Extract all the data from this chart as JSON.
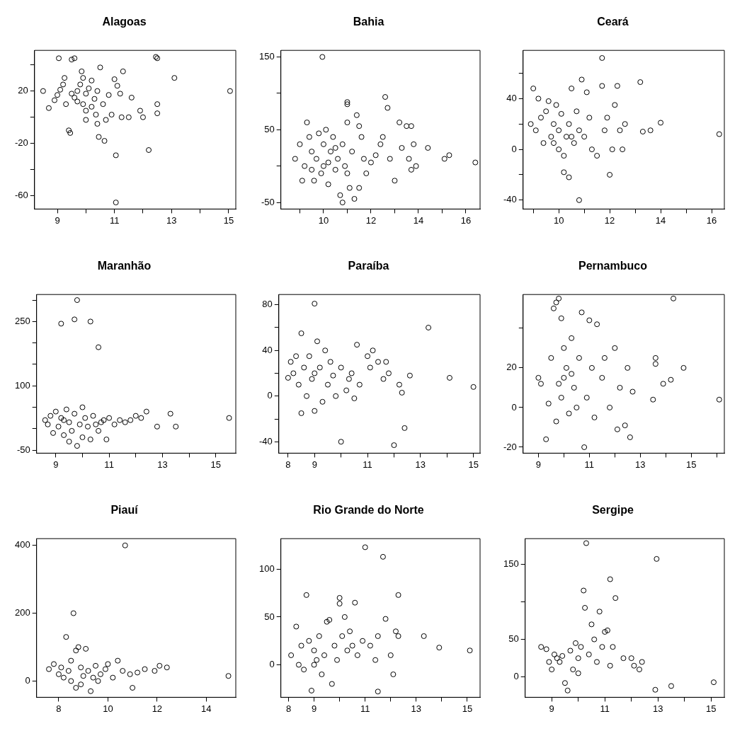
{
  "chart_data": [
    {
      "type": "scatter",
      "title": "Alagoas",
      "marker": "circle",
      "xlim": [
        8.2,
        15.25
      ],
      "xticks": [
        9,
        {
          "value": 10,
          "label": null
        },
        11,
        {
          "value": 12,
          "label": null
        },
        13,
        {
          "value": 14,
          "label": null
        },
        15
      ],
      "ylim": [
        -70,
        51
      ],
      "yticks": [
        -60,
        {
          "value": -40,
          "label": null
        },
        -20,
        {
          "value": 0,
          "label": null
        },
        20,
        {
          "value": 40,
          "label": null
        }
      ],
      "series": [
        {
          "color": "#000000",
          "x": [
            8.5,
            8.7,
            8.9,
            9.0,
            9.05,
            9.1,
            9.2,
            9.25,
            9.3,
            9.4,
            9.45,
            9.5,
            9.5,
            9.6,
            9.6,
            9.7,
            9.7,
            9.8,
            9.85,
            9.9,
            10,
            10,
            10.1,
            10.2,
            10.3,
            10.35,
            10.4,
            10.45,
            10.5,
            10.6,
            10.65,
            10.7,
            10.8,
            10.9,
            11.0,
            11.05,
            11.05,
            11.1,
            11.2,
            11.25,
            11.3,
            11.5,
            11.6,
            11.9,
            12.0,
            12.2,
            12.45,
            12.5,
            12.5,
            12.5,
            13.1,
            15.05,
            10.2,
            9.9,
            10.4,
            10.0
          ],
          "values": [
            20,
            7,
            13,
            17,
            45,
            21,
            25,
            30,
            10,
            -10,
            -12,
            18,
            44,
            45,
            15,
            12,
            20,
            25,
            35,
            30,
            18,
            5,
            22,
            28,
            14,
            2,
            -5,
            -15,
            38,
            10,
            -18,
            -2,
            17,
            2,
            29,
            -29,
            -65,
            24,
            18,
            0,
            35,
            0,
            15,
            5,
            0,
            -25,
            46,
            45,
            10,
            3,
            30,
            20,
            8,
            10,
            20,
            -2
          ]
        }
      ]
    },
    {
      "type": "scatter",
      "title": "Bahia",
      "marker": "circle",
      "xlim": [
        8.2,
        16.6
      ],
      "xticks": [
        {
          "value": 9,
          "label": null
        },
        10,
        {
          "value": 11,
          "label": null
        },
        12,
        {
          "value": 13,
          "label": null
        },
        14,
        {
          "value": 15,
          "label": null
        },
        16
      ],
      "ylim": [
        -59,
        159
      ],
      "yticks": [
        -50,
        {
          "value": 0,
          "label": null
        },
        50,
        {
          "value": 100,
          "label": null
        },
        150
      ],
      "series": [
        {
          "color": "#000000",
          "x": [
            8.8,
            9,
            9.1,
            9.2,
            9.3,
            9.4,
            9.5,
            9.6,
            9.7,
            9.8,
            9.9,
            9.95,
            10,
            10,
            10.1,
            10.2,
            10.3,
            10.4,
            10.5,
            10.6,
            10.7,
            10.8,
            10.8,
            10.9,
            11,
            11,
            11,
            11.1,
            11.2,
            11.3,
            11.4,
            11.5,
            11.5,
            11.6,
            11.7,
            11.8,
            12,
            12.2,
            12.4,
            12.5,
            12.6,
            12.7,
            12.8,
            13,
            13.2,
            13.3,
            13.5,
            13.6,
            13.7,
            13.7,
            13.8,
            13.9,
            14.4,
            15.1,
            15.3,
            16.4,
            9.5,
            10.5,
            11,
            10.2
          ],
          "values": [
            10,
            30,
            -20,
            0,
            60,
            40,
            20,
            -20,
            10,
            45,
            -10,
            150,
            0,
            30,
            50,
            -25,
            20,
            40,
            -5,
            10,
            -40,
            -50,
            30,
            0,
            85,
            88,
            60,
            -30,
            20,
            -45,
            70,
            -30,
            55,
            40,
            10,
            -10,
            5,
            15,
            30,
            40,
            95,
            80,
            10,
            -20,
            60,
            25,
            55,
            10,
            -5,
            55,
            30,
            0,
            25,
            10,
            15,
            5,
            -5,
            25,
            -10,
            5
          ]
        }
      ]
    },
    {
      "type": "scatter",
      "title": "Ceará",
      "marker": "circle",
      "xlim": [
        8.6,
        16.5
      ],
      "xticks": [
        {
          "value": 9,
          "label": null
        },
        10,
        {
          "value": 11,
          "label": null
        },
        12,
        {
          "value": 13,
          "label": null
        },
        14,
        {
          "value": 15,
          "label": null
        },
        16
      ],
      "ylim": [
        -47,
        78
      ],
      "yticks": [
        -40,
        {
          "value": -20,
          "label": null
        },
        0,
        {
          "value": 20,
          "label": null
        },
        40,
        {
          "value": 60,
          "label": null
        }
      ],
      "series": [
        {
          "color": "#000000",
          "x": [
            8.9,
            9.0,
            9.1,
            9.2,
            9.3,
            9.4,
            9.5,
            9.6,
            9.7,
            9.8,
            9.9,
            10,
            10,
            10.1,
            10.2,
            10.2,
            10.3,
            10.4,
            10.4,
            10.5,
            10.6,
            10.7,
            10.8,
            10.8,
            10.9,
            11,
            11.1,
            11.2,
            11.3,
            11.5,
            11.7,
            11.7,
            11.8,
            11.9,
            12,
            12.1,
            12.2,
            12.3,
            12.4,
            12.5,
            12.6,
            13.2,
            13.3,
            13.6,
            14,
            16.3,
            10.5,
            9.8
          ],
          "values": [
            20,
            48,
            15,
            40,
            25,
            5,
            30,
            38,
            10,
            20,
            35,
            0,
            15,
            28,
            -5,
            -18,
            10,
            20,
            -22,
            48,
            5,
            30,
            -40,
            15,
            55,
            10,
            45,
            25,
            0,
            -5,
            72,
            50,
            15,
            25,
            -20,
            0,
            35,
            50,
            15,
            0,
            20,
            53,
            14,
            15,
            21,
            12,
            10,
            5
          ]
        }
      ]
    },
    {
      "type": "scatter",
      "title": "Maranhão",
      "marker": "circle",
      "xlim": [
        8.28,
        15.75
      ],
      "xticks": [
        9,
        {
          "value": 10,
          "label": null
        },
        11,
        {
          "value": 12,
          "label": null
        },
        13,
        {
          "value": 14,
          "label": null
        },
        15
      ],
      "ylim": [
        -57,
        313
      ],
      "yticks": [
        -50,
        {
          "value": 0,
          "label": null
        },
        {
          "value": 50,
          "label": null
        },
        100,
        {
          "value": 150,
          "label": null
        },
        {
          "value": 200,
          "label": null
        },
        250,
        {
          "value": 300,
          "label": null
        }
      ],
      "series": [
        {
          "color": "#000000",
          "x": [
            8.6,
            8.7,
            8.8,
            8.9,
            9.0,
            9.1,
            9.2,
            9.2,
            9.3,
            9.4,
            9.5,
            9.6,
            9.7,
            9.7,
            9.8,
            9.8,
            9.9,
            10,
            10,
            10.1,
            10.2,
            10.3,
            10.3,
            10.4,
            10.5,
            10.6,
            10.6,
            10.8,
            10.9,
            11,
            11.2,
            11.4,
            11.6,
            11.8,
            12,
            12.2,
            12.4,
            12.8,
            13.3,
            13.5,
            15.5,
            9.5,
            10.7,
            9.3
          ],
          "values": [
            20,
            10,
            30,
            -10,
            40,
            5,
            245,
            25,
            -15,
            45,
            15,
            -5,
            255,
            35,
            300,
            -40,
            10,
            50,
            -20,
            25,
            5,
            250,
            -25,
            30,
            10,
            190,
            -5,
            20,
            -25,
            25,
            10,
            20,
            15,
            20,
            30,
            25,
            40,
            5,
            35,
            5,
            25,
            -30,
            15,
            20
          ]
        }
      ]
    },
    {
      "type": "scatter",
      "title": "Paraíba",
      "marker": "circle",
      "xlim": [
        7.65,
        15.25
      ],
      "xticks": [
        8,
        9,
        {
          "value": 10,
          "label": null
        },
        11,
        {
          "value": 12,
          "label": null
        },
        13,
        {
          "value": 14,
          "label": null
        },
        15
      ],
      "ylim": [
        -50,
        89
      ],
      "yticks": [
        -40,
        {
          "value": -20,
          "label": null
        },
        0,
        {
          "value": 20,
          "label": null
        },
        40,
        {
          "value": 60,
          "label": null
        },
        80
      ],
      "series": [
        {
          "color": "#000000",
          "x": [
            8.0,
            8.1,
            8.2,
            8.3,
            8.4,
            8.5,
            8.5,
            8.6,
            8.7,
            8.8,
            8.9,
            9.0,
            9.0,
            9.1,
            9.2,
            9.3,
            9.4,
            9.5,
            9.6,
            9.7,
            9.8,
            10.0,
            10.0,
            10.2,
            10.4,
            10.5,
            10.6,
            10.7,
            11.0,
            11.1,
            11.2,
            11.4,
            11.6,
            11.7,
            11.8,
            12.0,
            12.2,
            12.3,
            12.4,
            12.6,
            13.3,
            14.1,
            15.0,
            9.0,
            10.3
          ],
          "values": [
            16,
            30,
            20,
            35,
            10,
            -15,
            55,
            25,
            0,
            35,
            15,
            81,
            -13,
            48,
            25,
            -5,
            40,
            10,
            30,
            18,
            0,
            -40,
            25,
            5,
            20,
            -2,
            45,
            10,
            35,
            25,
            40,
            30,
            15,
            30,
            20,
            -43,
            10,
            3,
            -28,
            18,
            60,
            16,
            8,
            20,
            15
          ]
        }
      ]
    },
    {
      "type": "scatter",
      "title": "Pernambuco",
      "marker": "circle",
      "xlim": [
        8.4,
        16.3
      ],
      "xticks": [
        9,
        {
          "value": 10,
          "label": null
        },
        11,
        {
          "value": 12,
          "label": null
        },
        13,
        {
          "value": 14,
          "label": null
        },
        15,
        {
          "value": 16,
          "label": null
        }
      ],
      "ylim": [
        -23,
        57
      ],
      "yticks": [
        -20,
        0,
        20,
        {
          "value": 40,
          "label": null
        }
      ],
      "series": [
        {
          "color": "#000000",
          "x": [
            9.0,
            9.1,
            9.3,
            9.4,
            9.5,
            9.6,
            9.7,
            9.7,
            9.8,
            9.9,
            9.9,
            10.0,
            10.0,
            10.1,
            10.2,
            10.3,
            10.4,
            10.5,
            10.6,
            10.7,
            10.8,
            10.9,
            11.0,
            11.1,
            11.2,
            11.3,
            11.5,
            11.6,
            11.8,
            12.0,
            12.1,
            12.2,
            12.4,
            12.5,
            12.6,
            12.7,
            13.5,
            13.6,
            13.6,
            13.9,
            14.2,
            14.3,
            14.7,
            16.1,
            10.3,
            9.8
          ],
          "values": [
            15,
            12,
            -16,
            2,
            25,
            50,
            53,
            -7,
            55,
            45,
            5,
            30,
            15,
            20,
            -3,
            35,
            10,
            0,
            25,
            48,
            -20,
            5,
            44,
            20,
            -5,
            42,
            15,
            25,
            0,
            30,
            -11,
            10,
            -9,
            20,
            -15,
            8,
            4,
            25,
            22,
            12,
            14,
            55,
            20,
            4,
            17,
            12
          ]
        }
      ]
    },
    {
      "type": "scatter",
      "title": "Piauí",
      "marker": "circle",
      "xlim": [
        7.1,
        15.2
      ],
      "xticks": [
        8,
        10,
        12,
        14
      ],
      "ylim": [
        -48,
        420
      ],
      "yticks": [
        0,
        200,
        400
      ],
      "series": [
        {
          "color": "#000000",
          "x": [
            7.6,
            7.8,
            8.0,
            8.1,
            8.2,
            8.3,
            8.4,
            8.5,
            8.5,
            8.6,
            8.7,
            8.7,
            8.8,
            8.9,
            9.0,
            9.1,
            9.2,
            9.3,
            9.4,
            9.5,
            9.7,
            9.9,
            10.0,
            10.2,
            10.4,
            10.6,
            10.7,
            10.9,
            11.0,
            11.2,
            11.5,
            11.9,
            12.1,
            12.4,
            14.9,
            9.6,
            8.9
          ],
          "values": [
            35,
            50,
            20,
            40,
            10,
            130,
            30,
            60,
            0,
            200,
            90,
            -20,
            100,
            40,
            15,
            95,
            30,
            -30,
            10,
            45,
            20,
            35,
            50,
            10,
            60,
            30,
            400,
            20,
            -20,
            25,
            35,
            30,
            45,
            40,
            15,
            0,
            -10
          ]
        }
      ]
    },
    {
      "type": "scatter",
      "title": "Rio Grande do Norte",
      "marker": "circle",
      "xlim": [
        7.7,
        15.5
      ],
      "xticks": [
        8,
        9,
        {
          "value": 10,
          "label": null
        },
        11,
        {
          "value": 12,
          "label": null
        },
        13,
        {
          "value": 14,
          "label": null
        },
        15
      ],
      "ylim": [
        -34,
        132
      ],
      "yticks": [
        0,
        50,
        100
      ],
      "series": [
        {
          "color": "#000000",
          "x": [
            8.1,
            8.3,
            8.4,
            8.5,
            8.6,
            8.7,
            8.8,
            8.9,
            9.0,
            9.1,
            9.2,
            9.3,
            9.4,
            9.5,
            9.6,
            9.7,
            9.8,
            9.9,
            10.0,
            10.0,
            10.1,
            10.2,
            10.3,
            10.4,
            10.6,
            10.7,
            10.9,
            11.0,
            11.2,
            11.4,
            11.5,
            11.5,
            11.7,
            11.8,
            12.0,
            12.1,
            12.2,
            12.3,
            12.3,
            13.3,
            13.9,
            15.1,
            9.0,
            10.5
          ],
          "values": [
            10,
            40,
            0,
            20,
            -5,
            73,
            25,
            -27,
            15,
            5,
            30,
            -10,
            10,
            45,
            47,
            -20,
            20,
            5,
            70,
            64,
            30,
            50,
            15,
            35,
            65,
            10,
            25,
            123,
            20,
            5,
            -28,
            30,
            113,
            48,
            10,
            -10,
            35,
            73,
            30,
            30,
            18,
            15,
            0,
            20
          ]
        }
      ]
    },
    {
      "type": "scatter",
      "title": "Sergipe",
      "marker": "circle",
      "xlim": [
        8.0,
        15.5
      ],
      "xticks": [
        9,
        {
          "value": 10,
          "label": null
        },
        11,
        {
          "value": 12,
          "label": null
        },
        13,
        {
          "value": 14,
          "label": null
        },
        15
      ],
      "ylim": [
        -27,
        184
      ],
      "yticks": [
        0,
        50,
        {
          "value": 100,
          "label": null
        },
        150
      ],
      "series": [
        {
          "color": "#000000",
          "x": [
            8.6,
            8.8,
            8.9,
            9.0,
            9.1,
            9.2,
            9.3,
            9.4,
            9.5,
            9.6,
            9.7,
            9.8,
            9.9,
            10.0,
            10.1,
            10.2,
            10.25,
            10.3,
            10.4,
            10.5,
            10.6,
            10.7,
            10.8,
            10.9,
            11.0,
            11.1,
            11.2,
            11.2,
            11.3,
            11.4,
            11.7,
            12.0,
            12.1,
            12.3,
            12.4,
            12.9,
            12.95,
            13.5,
            15.1,
            10.0
          ],
          "values": [
            40,
            37,
            20,
            10,
            30,
            25,
            20,
            28,
            -8,
            -18,
            35,
            10,
            45,
            5,
            40,
            115,
            92,
            178,
            30,
            70,
            50,
            20,
            87,
            40,
            60,
            62,
            15,
            130,
            40,
            105,
            25,
            25,
            15,
            10,
            20,
            -17,
            157,
            -12,
            -7,
            25
          ]
        }
      ]
    }
  ]
}
